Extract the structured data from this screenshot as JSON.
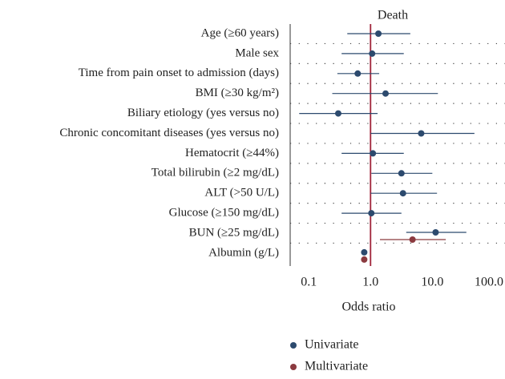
{
  "chart_data": {
    "type": "forest",
    "title": "Death",
    "x_label": "Odds ratio",
    "categories": [
      "Age (≥60 years)",
      "Male sex",
      "Time from pain onset to admission (days)",
      "BMI (≥30 kg/m²)",
      "Biliary etiology (yes versus no)",
      "Chronic concomitant diseases (yes versus no)",
      "Hematocrit (≥44%)",
      "Total bilirubin (≥2 mg/dL)",
      "ALT (>50 U/L)",
      "Glucose (≥150 mg/dL)",
      "BUN (≥25 mg/dL)",
      "Albumin (g/L)"
    ],
    "series": [
      {
        "name": "Univariate",
        "color": "#2c4a6e",
        "values": [
          1.34,
          1.06,
          0.62,
          1.75,
          0.3,
          6.6,
          1.09,
          3.16,
          3.35,
          1.03,
          11.3,
          0.79
        ],
        "lower": [
          0.42,
          0.34,
          0.29,
          0.24,
          0.07,
          1.0,
          0.34,
          1.03,
          1.0,
          0.34,
          3.78,
          null
        ],
        "upper": [
          4.4,
          3.45,
          1.38,
          12.3,
          1.3,
          48,
          3.45,
          10,
          11.9,
          3.16,
          35.5,
          null
        ]
      },
      {
        "name": "Multivariate",
        "color": "#8b3a3f",
        "values": [
          null,
          null,
          null,
          null,
          null,
          null,
          null,
          null,
          null,
          null,
          4.78,
          0.79
        ],
        "lower": [
          null,
          null,
          null,
          null,
          null,
          null,
          null,
          null,
          null,
          null,
          1.42,
          null
        ],
        "upper": [
          null,
          null,
          null,
          null,
          null,
          null,
          null,
          null,
          null,
          null,
          16.5,
          null
        ]
      }
    ],
    "xlim": [
      0.05,
      150
    ],
    "log_x": true,
    "xticks": [
      0.1,
      {
        "value": 1,
        "label": "1.0"
      },
      {
        "value": 10,
        "label": "10.0"
      },
      {
        "value": 100,
        "label": "100.0"
      }
    ],
    "reference_line": 1,
    "reference_color": "#a0243a",
    "grid": true,
    "legend": "bottom"
  }
}
